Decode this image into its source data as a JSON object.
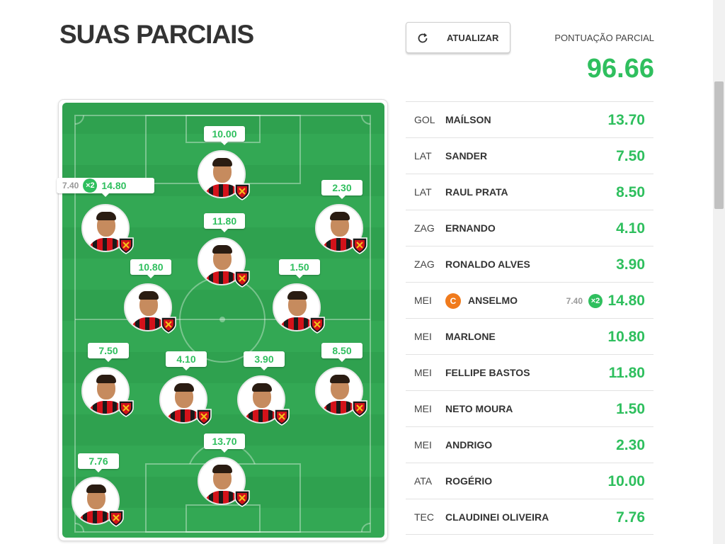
{
  "header": {
    "title": "SUAS PARCIAIS",
    "refresh_label": "ATUALIZAR",
    "score_label": "PONTUAÇÃO PARCIAL",
    "score_value": "96.66"
  },
  "colors": {
    "accent": "#2fbf5e",
    "captain": "#f07b1d",
    "field": "#33a854"
  },
  "field_players": [
    {
      "name": "ROGÉRIO",
      "score": "10.00"
    },
    {
      "name": "ANSELMO",
      "score": "14.80",
      "base": "7.40",
      "multiplier": "×2"
    },
    {
      "name": "ANDRIGO",
      "score": "2.30"
    },
    {
      "name": "FELLIPE BASTOS",
      "score": "11.80"
    },
    {
      "name": "MARLONE",
      "score": "10.80"
    },
    {
      "name": "NETO MOURA",
      "score": "1.50"
    },
    {
      "name": "SANDER",
      "score": "7.50"
    },
    {
      "name": "ERNANDO",
      "score": "4.10"
    },
    {
      "name": "RONALDO ALVES",
      "score": "3.90"
    },
    {
      "name": "RAUL PRATA",
      "score": "8.50"
    },
    {
      "name": "MAÍLSON",
      "score": "13.70"
    },
    {
      "name": "CLAUDINEI OLIVEIRA",
      "score": "7.76"
    }
  ],
  "list": [
    {
      "pos": "GOL",
      "name": "MAÍLSON",
      "pts": "13.70"
    },
    {
      "pos": "LAT",
      "name": "SANDER",
      "pts": "7.50"
    },
    {
      "pos": "LAT",
      "name": "RAUL PRATA",
      "pts": "8.50"
    },
    {
      "pos": "ZAG",
      "name": "ERNANDO",
      "pts": "4.10"
    },
    {
      "pos": "ZAG",
      "name": "RONALDO ALVES",
      "pts": "3.90"
    },
    {
      "pos": "MEI",
      "name": "ANSELMO",
      "pts": "14.80",
      "captain": "C",
      "base": "7.40",
      "multiplier": "×2"
    },
    {
      "pos": "MEI",
      "name": "MARLONE",
      "pts": "10.80"
    },
    {
      "pos": "MEI",
      "name": "FELLIPE BASTOS",
      "pts": "11.80"
    },
    {
      "pos": "MEI",
      "name": "NETO MOURA",
      "pts": "1.50"
    },
    {
      "pos": "MEI",
      "name": "ANDRIGO",
      "pts": "2.30"
    },
    {
      "pos": "ATA",
      "name": "ROGÉRIO",
      "pts": "10.00"
    },
    {
      "pos": "TEC",
      "name": "CLAUDINEI OLIVEIRA",
      "pts": "7.76"
    }
  ]
}
